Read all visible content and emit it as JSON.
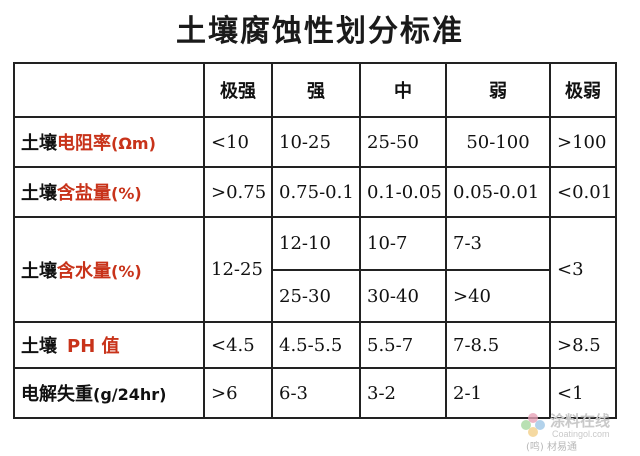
{
  "title": "土壤腐蚀性划分标准",
  "columns": [
    "极强",
    "强",
    "中",
    "弱",
    "极弱"
  ],
  "rows": {
    "resistivity": {
      "prefix": "土壤",
      "highlight": "电阻率",
      "unit": "(Ωm)",
      "values": [
        "<10",
        "10-25",
        "25-50",
        "50-100",
        ">100"
      ]
    },
    "salt": {
      "prefix": "土壤",
      "highlight": "含盐量",
      "unit": "(%)",
      "values": [
        ">0.75",
        "0.75-0.1",
        "0.1-0.05",
        "0.05-0.01",
        "<0.01"
      ]
    },
    "water": {
      "prefix": "土壤",
      "highlight": "含水量",
      "unit": "(%)",
      "very_strong": "12-25",
      "upper": [
        "12-10",
        "10-7",
        "7-3"
      ],
      "lower": [
        "25-30",
        "30-40",
        ">40"
      ],
      "very_weak": "<3"
    },
    "ph": {
      "prefix": "土壤",
      "highlight": "PH 值",
      "values": [
        "<4.5",
        "4.5-5.5",
        "5.5-7",
        "7-8.5",
        ">8.5"
      ]
    },
    "electrolysis": {
      "label": "电解失重",
      "unit": "(g/24hr)",
      "values": [
        ">6",
        "6-3",
        "3-2",
        "2-1",
        "<1"
      ]
    }
  },
  "watermark": {
    "name": "涂料在线",
    "site": "Coatingol.com",
    "tag": "(鸣) 材易通"
  },
  "colors": {
    "highlight": "#c8331a",
    "border": "#222222"
  }
}
